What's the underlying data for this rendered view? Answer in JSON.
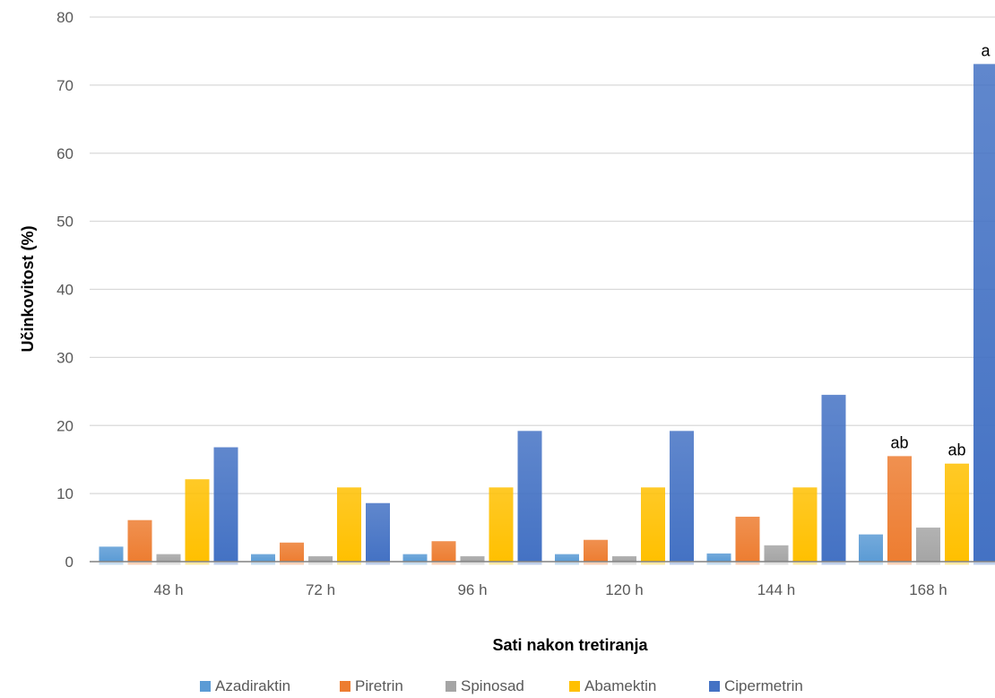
{
  "chart_data": {
    "type": "bar",
    "title": "",
    "xlabel": "Sati nakon tretiranja",
    "ylabel": "Učinkovitost (%)",
    "ylim": [
      0,
      80
    ],
    "yticks": [
      0,
      10,
      20,
      30,
      40,
      50,
      60,
      70,
      80
    ],
    "grid": true,
    "legend_position": "bottom",
    "categories": [
      "48 h",
      "72 h",
      "96 h",
      "120 h",
      "144 h",
      "168 h"
    ],
    "series": [
      {
        "name": "Azadiraktin",
        "color": "#5B9BD5",
        "values": [
          2.2,
          1.1,
          1.1,
          1.1,
          1.2,
          4.0
        ]
      },
      {
        "name": "Piretrin",
        "color": "#ED7D31",
        "values": [
          6.1,
          2.8,
          3.0,
          3.2,
          6.6,
          15.5
        ]
      },
      {
        "name": "Spinosad",
        "color": "#A5A5A5",
        "values": [
          1.1,
          0.8,
          0.8,
          0.8,
          2.4,
          5.0
        ]
      },
      {
        "name": "Abamektin",
        "color": "#FFC000",
        "values": [
          12.1,
          10.9,
          10.9,
          10.9,
          10.9,
          14.4
        ]
      },
      {
        "name": "Cipermetrin",
        "color": "#4472C4",
        "values": [
          16.8,
          8.6,
          19.2,
          19.2,
          24.5,
          73.1
        ]
      }
    ],
    "annotations": [
      {
        "series": "Piretrin",
        "category": "168 h",
        "text": "ab"
      },
      {
        "series": "Abamektin",
        "category": "168 h",
        "text": "ab"
      },
      {
        "series": "Cipermetrin",
        "category": "168 h",
        "text": "a"
      }
    ]
  }
}
